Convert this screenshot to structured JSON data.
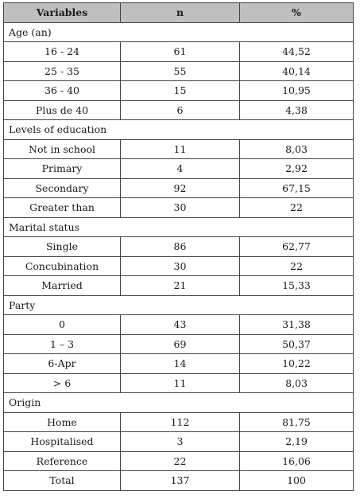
{
  "table": {
    "headers": [
      "Variables",
      "n",
      "%"
    ],
    "sections": [
      {
        "title": "Age (an)",
        "rows": [
          [
            "16 - 24",
            "61",
            "44,52"
          ],
          [
            "25 - 35",
            "55",
            "40,14"
          ],
          [
            "36 - 40",
            "15",
            "10,95"
          ],
          [
            "Plus de 40",
            "6",
            "4,38"
          ]
        ]
      },
      {
        "title": "Levels of education",
        "rows": [
          [
            "Not in school",
            "11",
            "8,03"
          ],
          [
            "Primary",
            "4",
            "2,92"
          ],
          [
            "Secondary",
            "92",
            "67,15"
          ],
          [
            "Greater than",
            "30",
            "22"
          ]
        ]
      },
      {
        "title": "Marital status",
        "rows": [
          [
            "Single",
            "86",
            "62,77"
          ],
          [
            "Concubination",
            "30",
            "22"
          ],
          [
            "Married",
            "21",
            "15,33"
          ]
        ]
      },
      {
        "title": "Party",
        "rows": [
          [
            "0",
            "43",
            "31,38"
          ],
          [
            "1 – 3",
            "69",
            "50,37"
          ],
          [
            "6-Apr",
            "14",
            "10,22"
          ],
          [
            "> 6",
            "11",
            "8,03"
          ]
        ]
      },
      {
        "title": "Origin",
        "rows": [
          [
            "Home",
            "112",
            "81,75"
          ],
          [
            "Hospitalised",
            "3",
            "2,19"
          ],
          [
            "Reference",
            "22",
            "16,06"
          ]
        ]
      }
    ],
    "total": [
      "Total",
      "137",
      "100"
    ]
  }
}
